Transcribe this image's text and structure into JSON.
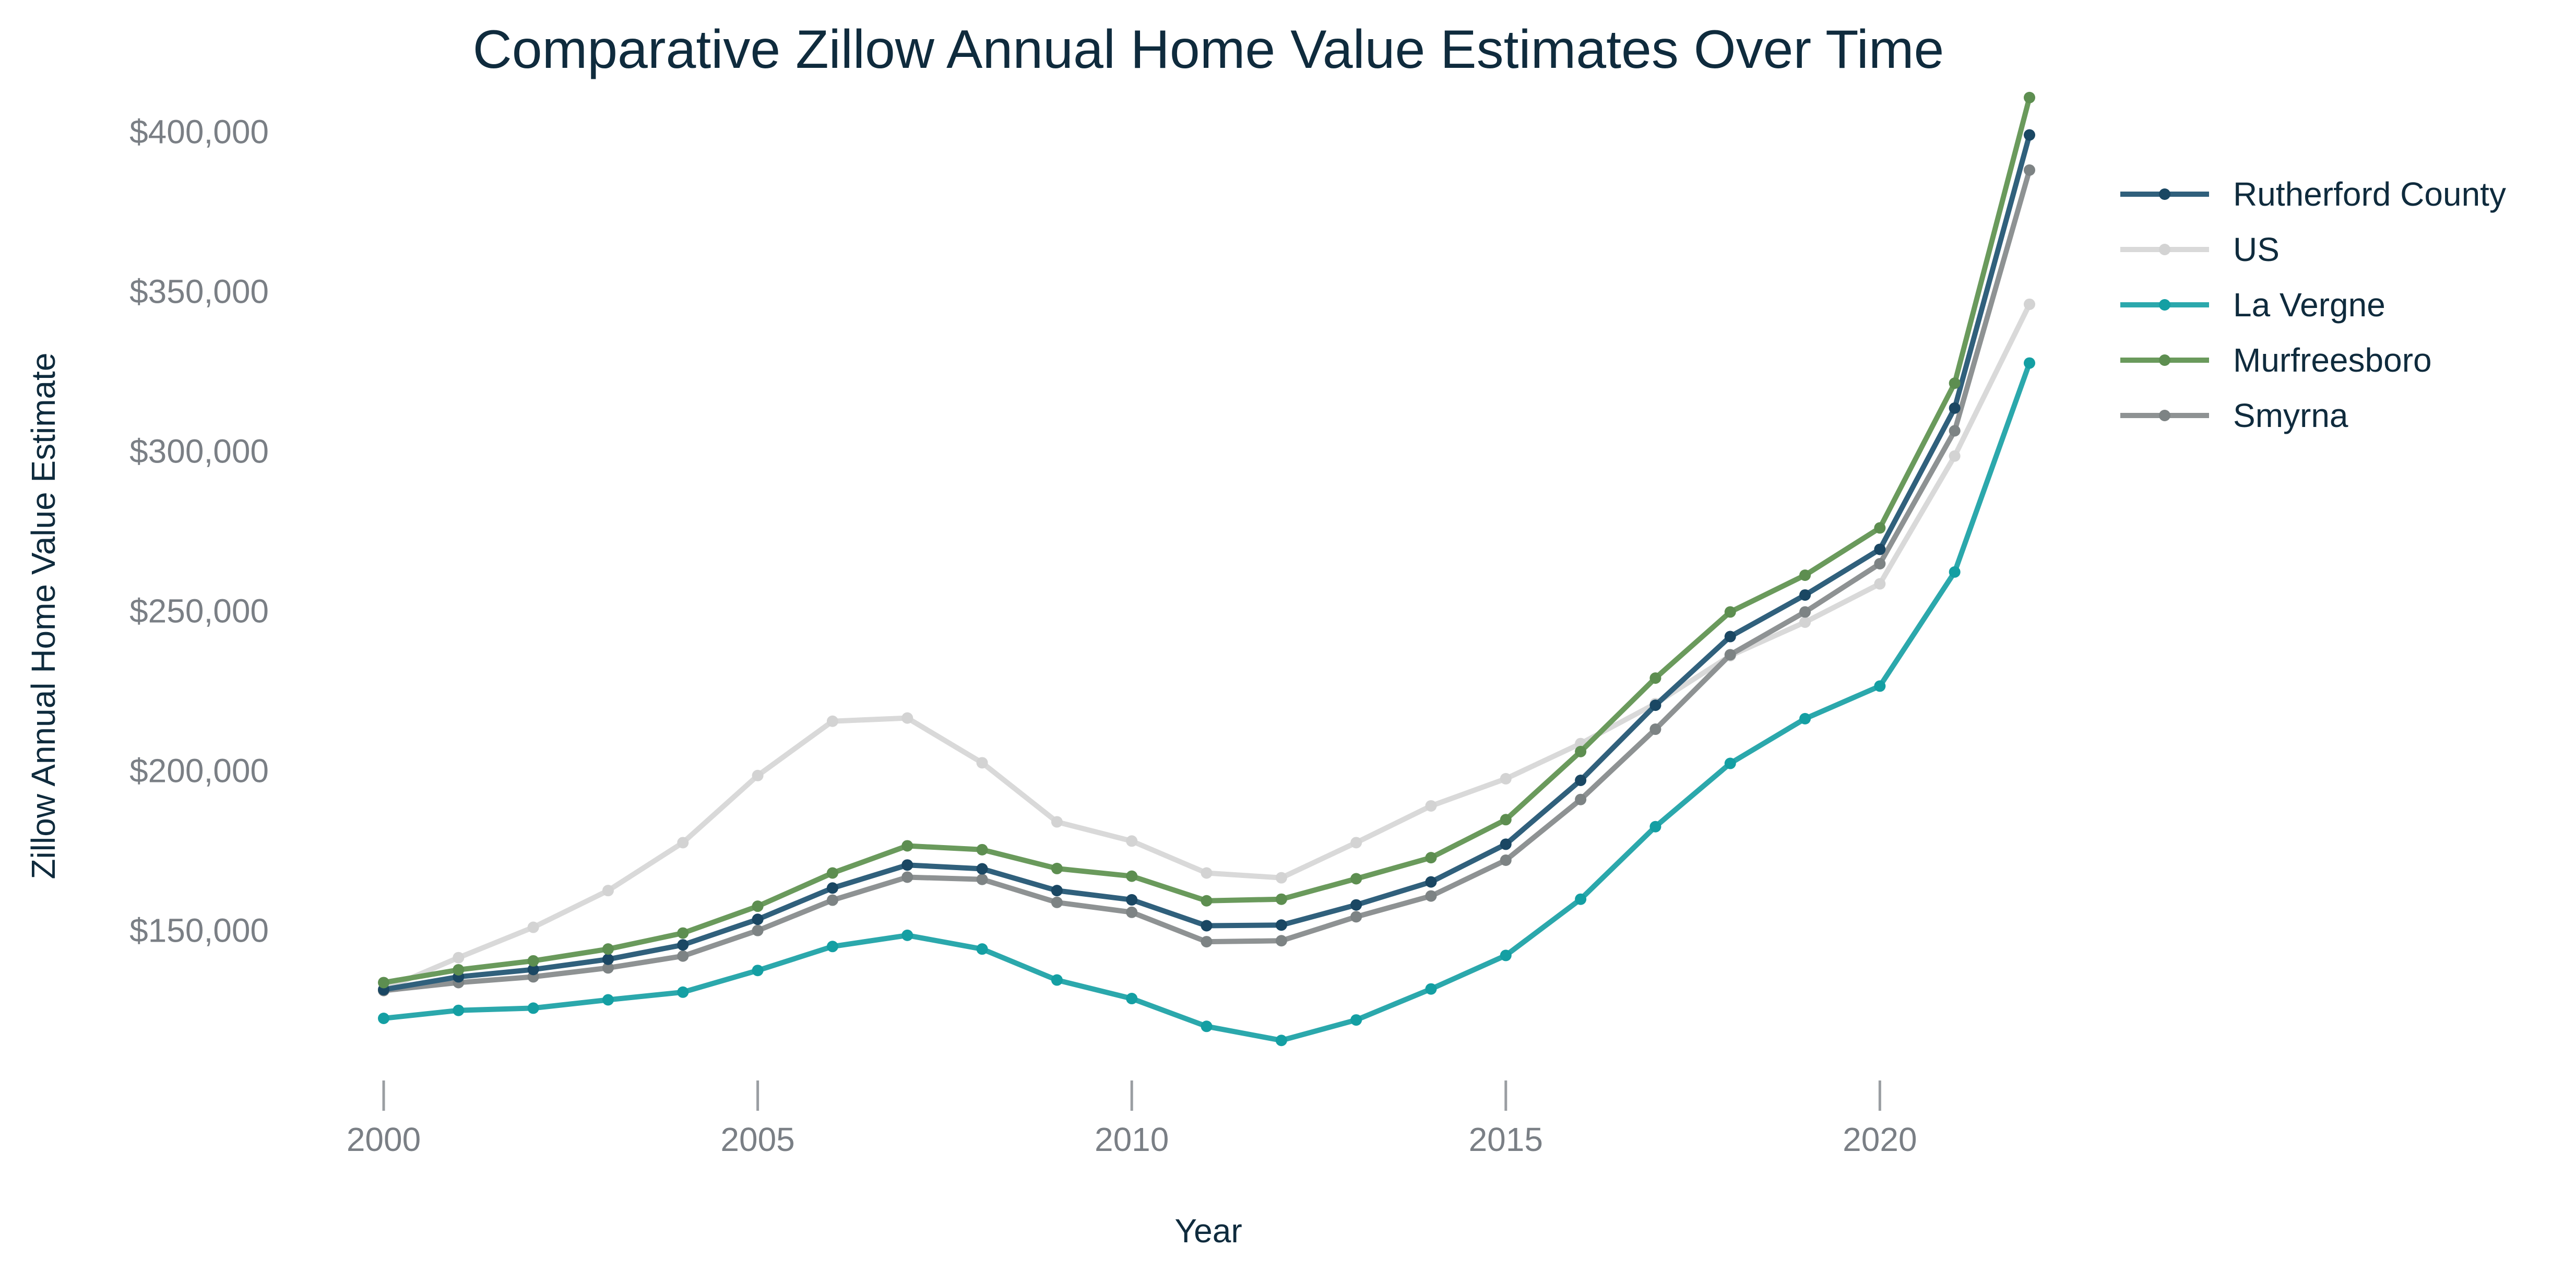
{
  "chart_data": {
    "type": "line",
    "title": "Comparative Zillow Annual Home Value Estimates Over Time",
    "xlabel": "Year",
    "ylabel": "Zillow Annual Home Value Estimate",
    "x": [
      2000,
      2001,
      2002,
      2003,
      2004,
      2005,
      2006,
      2007,
      2008,
      2009,
      2010,
      2011,
      2012,
      2013,
      2014,
      2015,
      2016,
      2017,
      2018,
      2019,
      2020,
      2021,
      2022
    ],
    "xlim": [
      1999.0,
      2024.5
    ],
    "ylim": [
      106000,
      420000
    ],
    "x_ticks": [
      2000,
      2005,
      2010,
      2015,
      2020
    ],
    "x_tick_labels": [
      "2000",
      "2005",
      "2010",
      "2015",
      "2020"
    ],
    "y_ticks": [
      150000,
      200000,
      250000,
      300000,
      350000,
      400000
    ],
    "y_tick_labels": [
      "$150,000",
      "$200,000",
      "$250,000",
      "$300,000",
      "$350,000",
      "$400,000"
    ],
    "grid": false,
    "legend_position": "top-right",
    "series": [
      {
        "name": "US",
        "color": "#d9d9d9",
        "marker_color": "#d3d3d3",
        "values": [
          131500,
          141500,
          151000,
          162500,
          177500,
          198500,
          215500,
          216500,
          202500,
          184000,
          178000,
          168000,
          166500,
          177500,
          189000,
          197500,
          208500,
          221000,
          236000,
          246500,
          258500,
          298500,
          346000
        ]
      },
      {
        "name": "La Vergne",
        "color": "#2ba8ac",
        "marker_color": "#149fa3",
        "values": [
          122500,
          125000,
          125700,
          128300,
          130700,
          137500,
          145000,
          148500,
          144200,
          134500,
          128700,
          120000,
          115600,
          122000,
          131700,
          142200,
          159800,
          182500,
          202300,
          216300,
          226500,
          262200,
          327600
        ]
      },
      {
        "name": "Smyrna",
        "color": "#8e9293",
        "marker_color": "#7d8384",
        "values": [
          131200,
          133700,
          135500,
          138300,
          142000,
          150000,
          159500,
          166700,
          166000,
          158800,
          155700,
          146500,
          146800,
          154300,
          160800,
          172000,
          191000,
          213000,
          236300,
          249700,
          264800,
          306400,
          388000
        ]
      },
      {
        "name": "Rutherford County",
        "color": "#30607c",
        "marker_color": "#1a4763",
        "values": [
          131500,
          135500,
          137800,
          141000,
          145500,
          153500,
          163300,
          170500,
          169300,
          162500,
          159600,
          151500,
          151700,
          158000,
          165200,
          177000,
          197000,
          220500,
          242000,
          255000,
          269300,
          313500,
          399000
        ]
      },
      {
        "name": "Murfreesboro",
        "color": "#6a9a5c",
        "marker_color": "#5d8e50",
        "values": [
          133700,
          137700,
          140500,
          144200,
          149200,
          157600,
          168000,
          176500,
          175300,
          169400,
          167000,
          159300,
          159800,
          166200,
          172800,
          184700,
          206000,
          229000,
          249700,
          261200,
          276000,
          321300,
          410700
        ]
      }
    ],
    "legend_order": [
      "Rutherford County",
      "US",
      "La Vergne",
      "Murfreesboro",
      "Smyrna"
    ]
  }
}
